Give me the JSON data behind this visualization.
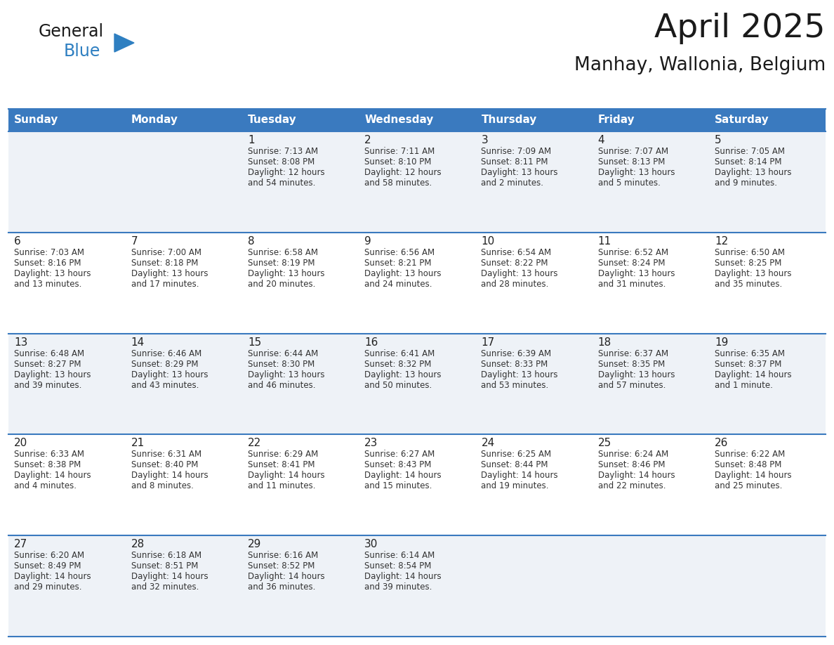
{
  "title": "April 2025",
  "subtitle": "Manhay, Wallonia, Belgium",
  "header_bg": "#3a7abf",
  "header_text": "#ffffff",
  "row_bg_even": "#eef2f7",
  "row_bg_odd": "#ffffff",
  "cell_text": "#333333",
  "border_color": "#3a7abf",
  "days_of_week": [
    "Sunday",
    "Monday",
    "Tuesday",
    "Wednesday",
    "Thursday",
    "Friday",
    "Saturday"
  ],
  "logo_general_color": "#1a1a1a",
  "logo_blue_color": "#2e7fc1",
  "weeks": [
    [
      {
        "day": "",
        "sunrise": "",
        "sunset": "",
        "daylight": ""
      },
      {
        "day": "",
        "sunrise": "",
        "sunset": "",
        "daylight": ""
      },
      {
        "day": "1",
        "sunrise": "Sunrise: 7:13 AM",
        "sunset": "Sunset: 8:08 PM",
        "daylight": "Daylight: 12 hours\nand 54 minutes."
      },
      {
        "day": "2",
        "sunrise": "Sunrise: 7:11 AM",
        "sunset": "Sunset: 8:10 PM",
        "daylight": "Daylight: 12 hours\nand 58 minutes."
      },
      {
        "day": "3",
        "sunrise": "Sunrise: 7:09 AM",
        "sunset": "Sunset: 8:11 PM",
        "daylight": "Daylight: 13 hours\nand 2 minutes."
      },
      {
        "day": "4",
        "sunrise": "Sunrise: 7:07 AM",
        "sunset": "Sunset: 8:13 PM",
        "daylight": "Daylight: 13 hours\nand 5 minutes."
      },
      {
        "day": "5",
        "sunrise": "Sunrise: 7:05 AM",
        "sunset": "Sunset: 8:14 PM",
        "daylight": "Daylight: 13 hours\nand 9 minutes."
      }
    ],
    [
      {
        "day": "6",
        "sunrise": "Sunrise: 7:03 AM",
        "sunset": "Sunset: 8:16 PM",
        "daylight": "Daylight: 13 hours\nand 13 minutes."
      },
      {
        "day": "7",
        "sunrise": "Sunrise: 7:00 AM",
        "sunset": "Sunset: 8:18 PM",
        "daylight": "Daylight: 13 hours\nand 17 minutes."
      },
      {
        "day": "8",
        "sunrise": "Sunrise: 6:58 AM",
        "sunset": "Sunset: 8:19 PM",
        "daylight": "Daylight: 13 hours\nand 20 minutes."
      },
      {
        "day": "9",
        "sunrise": "Sunrise: 6:56 AM",
        "sunset": "Sunset: 8:21 PM",
        "daylight": "Daylight: 13 hours\nand 24 minutes."
      },
      {
        "day": "10",
        "sunrise": "Sunrise: 6:54 AM",
        "sunset": "Sunset: 8:22 PM",
        "daylight": "Daylight: 13 hours\nand 28 minutes."
      },
      {
        "day": "11",
        "sunrise": "Sunrise: 6:52 AM",
        "sunset": "Sunset: 8:24 PM",
        "daylight": "Daylight: 13 hours\nand 31 minutes."
      },
      {
        "day": "12",
        "sunrise": "Sunrise: 6:50 AM",
        "sunset": "Sunset: 8:25 PM",
        "daylight": "Daylight: 13 hours\nand 35 minutes."
      }
    ],
    [
      {
        "day": "13",
        "sunrise": "Sunrise: 6:48 AM",
        "sunset": "Sunset: 8:27 PM",
        "daylight": "Daylight: 13 hours\nand 39 minutes."
      },
      {
        "day": "14",
        "sunrise": "Sunrise: 6:46 AM",
        "sunset": "Sunset: 8:29 PM",
        "daylight": "Daylight: 13 hours\nand 43 minutes."
      },
      {
        "day": "15",
        "sunrise": "Sunrise: 6:44 AM",
        "sunset": "Sunset: 8:30 PM",
        "daylight": "Daylight: 13 hours\nand 46 minutes."
      },
      {
        "day": "16",
        "sunrise": "Sunrise: 6:41 AM",
        "sunset": "Sunset: 8:32 PM",
        "daylight": "Daylight: 13 hours\nand 50 minutes."
      },
      {
        "day": "17",
        "sunrise": "Sunrise: 6:39 AM",
        "sunset": "Sunset: 8:33 PM",
        "daylight": "Daylight: 13 hours\nand 53 minutes."
      },
      {
        "day": "18",
        "sunrise": "Sunrise: 6:37 AM",
        "sunset": "Sunset: 8:35 PM",
        "daylight": "Daylight: 13 hours\nand 57 minutes."
      },
      {
        "day": "19",
        "sunrise": "Sunrise: 6:35 AM",
        "sunset": "Sunset: 8:37 PM",
        "daylight": "Daylight: 14 hours\nand 1 minute."
      }
    ],
    [
      {
        "day": "20",
        "sunrise": "Sunrise: 6:33 AM",
        "sunset": "Sunset: 8:38 PM",
        "daylight": "Daylight: 14 hours\nand 4 minutes."
      },
      {
        "day": "21",
        "sunrise": "Sunrise: 6:31 AM",
        "sunset": "Sunset: 8:40 PM",
        "daylight": "Daylight: 14 hours\nand 8 minutes."
      },
      {
        "day": "22",
        "sunrise": "Sunrise: 6:29 AM",
        "sunset": "Sunset: 8:41 PM",
        "daylight": "Daylight: 14 hours\nand 11 minutes."
      },
      {
        "day": "23",
        "sunrise": "Sunrise: 6:27 AM",
        "sunset": "Sunset: 8:43 PM",
        "daylight": "Daylight: 14 hours\nand 15 minutes."
      },
      {
        "day": "24",
        "sunrise": "Sunrise: 6:25 AM",
        "sunset": "Sunset: 8:44 PM",
        "daylight": "Daylight: 14 hours\nand 19 minutes."
      },
      {
        "day": "25",
        "sunrise": "Sunrise: 6:24 AM",
        "sunset": "Sunset: 8:46 PM",
        "daylight": "Daylight: 14 hours\nand 22 minutes."
      },
      {
        "day": "26",
        "sunrise": "Sunrise: 6:22 AM",
        "sunset": "Sunset: 8:48 PM",
        "daylight": "Daylight: 14 hours\nand 25 minutes."
      }
    ],
    [
      {
        "day": "27",
        "sunrise": "Sunrise: 6:20 AM",
        "sunset": "Sunset: 8:49 PM",
        "daylight": "Daylight: 14 hours\nand 29 minutes."
      },
      {
        "day": "28",
        "sunrise": "Sunrise: 6:18 AM",
        "sunset": "Sunset: 8:51 PM",
        "daylight": "Daylight: 14 hours\nand 32 minutes."
      },
      {
        "day": "29",
        "sunrise": "Sunrise: 6:16 AM",
        "sunset": "Sunset: 8:52 PM",
        "daylight": "Daylight: 14 hours\nand 36 minutes."
      },
      {
        "day": "30",
        "sunrise": "Sunrise: 6:14 AM",
        "sunset": "Sunset: 8:54 PM",
        "daylight": "Daylight: 14 hours\nand 39 minutes."
      },
      {
        "day": "",
        "sunrise": "",
        "sunset": "",
        "daylight": ""
      },
      {
        "day": "",
        "sunrise": "",
        "sunset": "",
        "daylight": ""
      },
      {
        "day": "",
        "sunrise": "",
        "sunset": "",
        "daylight": ""
      }
    ]
  ]
}
